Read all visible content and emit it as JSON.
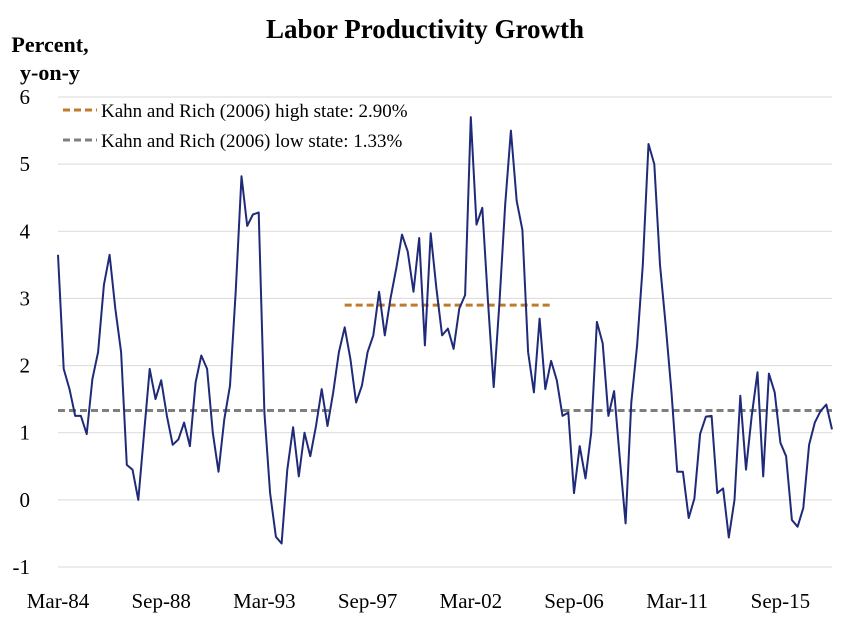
{
  "chart_data": {
    "type": "line",
    "title": "Labor Productivity Growth",
    "ylabel": "Percent, y-on-y",
    "ylabel_lines": [
      "Percent,",
      "y-on-y"
    ],
    "xlabel": "",
    "ylim": [
      -1,
      6
    ],
    "yticks": [
      "-1",
      "0",
      "1",
      "2",
      "3",
      "4",
      "5",
      "6"
    ],
    "xticks": [
      "Mar-84",
      "Sep-88",
      "Mar-93",
      "Sep-97",
      "Mar-02",
      "Sep-06",
      "Mar-11",
      "Sep-15"
    ],
    "grid": true,
    "legend": "top-left",
    "x_start": "Mar-84",
    "x_step": "quarter",
    "series": [
      {
        "name": "",
        "color": "#1f2a78",
        "values": [
          3.65,
          1.95,
          1.65,
          1.25,
          1.25,
          0.98,
          1.8,
          2.2,
          3.2,
          3.65,
          2.85,
          2.2,
          0.52,
          0.45,
          0.0,
          0.98,
          1.95,
          1.5,
          1.78,
          1.25,
          0.82,
          0.9,
          1.15,
          0.8,
          1.75,
          2.15,
          1.95,
          1.0,
          0.42,
          1.2,
          1.7,
          3.1,
          4.82,
          4.08,
          4.25,
          4.28,
          1.3,
          0.1,
          -0.55,
          -0.65,
          0.45,
          1.08,
          0.35,
          1.0,
          0.65,
          1.1,
          1.65,
          1.1,
          1.6,
          2.2,
          2.57,
          2.1,
          1.45,
          1.7,
          2.2,
          2.45,
          3.1,
          2.45,
          3.0,
          3.45,
          3.95,
          3.7,
          3.1,
          3.9,
          2.3,
          3.97,
          3.15,
          2.45,
          2.55,
          2.25,
          2.85,
          3.05,
          5.7,
          4.1,
          4.35,
          2.95,
          1.68,
          2.95,
          4.4,
          5.5,
          4.45,
          4.02,
          2.2,
          1.6,
          2.7,
          1.65,
          2.07,
          1.78,
          1.25,
          1.3,
          0.1,
          0.8,
          0.32,
          1.0,
          2.65,
          2.33,
          1.25,
          1.62,
          0.6,
          -0.35,
          1.45,
          2.3,
          3.5,
          5.3,
          5.0,
          3.5,
          2.6,
          1.6,
          0.42,
          0.42,
          -0.27,
          0.02,
          0.98,
          1.24,
          1.25,
          0.1,
          0.17,
          -0.56,
          0.0,
          1.55,
          0.45,
          1.25,
          1.9,
          0.35,
          1.88,
          1.6,
          0.85,
          0.65,
          -0.3,
          -0.4,
          -0.12,
          0.82,
          1.15,
          1.32,
          1.42,
          1.05
        ]
      }
    ],
    "reference_lines": [
      {
        "label": "Kahn and Rich (2006) high state: 2.90%",
        "value": 2.9,
        "color": "#c07a2c",
        "segments": [
          [
            "Sep-96",
            "Sep-05"
          ]
        ]
      },
      {
        "label": "Kahn and Rich (2006) low state: 1.33%",
        "value": 1.33,
        "color": "#7f7f7f",
        "segments": [
          [
            "Mar-84",
            "Mar-96"
          ],
          [
            "Mar-06",
            "Dec-17"
          ]
        ]
      }
    ]
  }
}
